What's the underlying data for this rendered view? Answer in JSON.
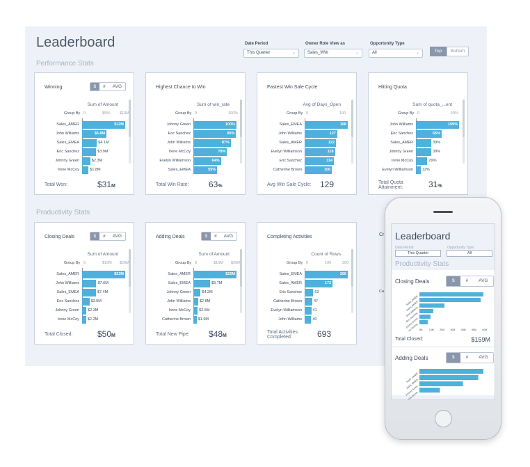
{
  "dashboard": {
    "title": "Leaderboard",
    "sections": [
      "Performance Stats",
      "Productivity Stats"
    ],
    "filters": [
      {
        "label": "Date Period",
        "value": "This Quarter"
      },
      {
        "label": "Owner Role View as",
        "value": "Sales_WW"
      },
      {
        "label": "Opportunity Type",
        "value": "All"
      }
    ],
    "top_bottom": [
      "Top",
      "Bottom"
    ],
    "toggle": [
      "$",
      "#",
      "AVG"
    ]
  },
  "cards": [
    {
      "title": "Winning",
      "toggle": true,
      "measure": "Sum of Amount",
      "ticks": [
        "0",
        "$5M",
        "$10M"
      ],
      "rows": [
        [
          "Sales_AMER",
          12,
          "$12M"
        ],
        [
          "John Williams",
          6.8,
          "$6.8M"
        ],
        [
          "Sales_EMEA",
          4.1,
          "$4.1M"
        ],
        [
          "Eric Sanchez",
          3.9,
          "$3.9M"
        ],
        [
          "Johnny Green",
          2.3,
          "$2.3M"
        ],
        [
          "Irene McCoy",
          1.8,
          "$1.8M"
        ]
      ],
      "max": 12,
      "total_label": "Total Won:",
      "total_value": "$31",
      "total_unit": "M"
    },
    {
      "title": "Highest Chance to Win",
      "toggle": false,
      "measure": "Sum of win_rate",
      "ticks": [
        "0",
        "100%"
      ],
      "rows": [
        [
          "Johnny Green",
          100,
          "100%"
        ],
        [
          "Eric Sanchez",
          99,
          "99%"
        ],
        [
          "John Williams",
          87,
          "87%"
        ],
        [
          "Irene McCoy",
          78,
          "78%"
        ],
        [
          "Evelyn Williamson",
          64,
          "64%"
        ],
        [
          "Sales_EMEA",
          55,
          "55%"
        ]
      ],
      "max": 100,
      "total_label": "Total Win Rate:",
      "total_value": "63",
      "total_unit": "%"
    },
    {
      "title": "Fastest Win Sale Cycle",
      "toggle": false,
      "measure": "Avg of Days_Open",
      "ticks": [
        "0",
        "100"
      ],
      "rows": [
        [
          "Sales_EMEA",
          168,
          "168"
        ],
        [
          "John Williams",
          127,
          "127"
        ],
        [
          "Sales_AMER",
          122,
          "122"
        ],
        [
          "Evelyn Williamson",
          118,
          "118"
        ],
        [
          "Eric Sanchez",
          114,
          "114"
        ],
        [
          "Catherine Brown",
          106,
          "106"
        ]
      ],
      "max": 168,
      "total_label": "Avg Win Sale Cycle:",
      "total_value": "129",
      "total_unit": ""
    },
    {
      "title": "Hitting Quota",
      "toggle": false,
      "measure": "Sum of quota_...ent",
      "ticks": [
        "0",
        "50%"
      ],
      "rows": [
        [
          "John Williams",
          109,
          "109%"
        ],
        [
          "Eric Sanchez",
          65,
          "65%"
        ],
        [
          "Sales_AMER",
          39,
          "39%"
        ],
        [
          "Johnny Green",
          39,
          "39%"
        ],
        [
          "Irene McCoy",
          29,
          "29%"
        ],
        [
          "Evelyn Williamson",
          12,
          "12%"
        ]
      ],
      "max": 109,
      "total_label": "Total Quota Attainment:",
      "total_value": "31",
      "total_unit": "%"
    },
    {
      "title": "Closing Deals",
      "toggle": true,
      "measure": "Sum of Amount",
      "ticks": [
        "0",
        "$10M",
        "$20M"
      ],
      "rows": [
        [
          "Sales_AMER",
          23,
          "$23M"
        ],
        [
          "John Williams",
          7.6,
          "$7.6M"
        ],
        [
          "Sales_EMEA",
          7.4,
          "$7.4M"
        ],
        [
          "Eric Sanchez",
          3.9,
          "$3.9M"
        ],
        [
          "Johnny Green",
          2.3,
          "$2.3M"
        ],
        [
          "Irene McCoy",
          2.2,
          "$2.2M"
        ]
      ],
      "max": 23,
      "total_label": "Total Closed:",
      "total_value": "$50",
      "total_unit": "M"
    },
    {
      "title": "Adding Deals",
      "toggle": true,
      "measure": "Sum of Amount",
      "ticks": [
        "0",
        "$10M",
        "$20M"
      ],
      "rows": [
        [
          "Sales_AMER",
          25,
          "$25M"
        ],
        [
          "Sales_EMEA",
          9.7,
          "$9.7M"
        ],
        [
          "Johnny Green",
          4.2,
          "$4.2M"
        ],
        [
          "John Williams",
          2.8,
          "$2.8M"
        ],
        [
          "Irene McCoy",
          2.5,
          "$2.5M"
        ],
        [
          "Catherine Brown",
          1.9,
          "$1.9M"
        ]
      ],
      "max": 25,
      "total_label": "Total New Pipe:",
      "total_value": "$48",
      "total_unit": "M"
    },
    {
      "title": "Completing Activities",
      "toggle": false,
      "measure": "Count of Rows",
      "ticks": [
        "0",
        "100",
        "200"
      ],
      "rows": [
        [
          "Sales_EMEA",
          266,
          "266"
        ],
        [
          "Sales_AMER",
          172,
          "172"
        ],
        [
          "Eric Sanchez",
          53,
          "53"
        ],
        [
          "Catherine Brown",
          47,
          "47"
        ],
        [
          "Evelyn Williamson",
          41,
          "41"
        ],
        [
          "John Williams",
          40,
          "40"
        ]
      ],
      "max": 266,
      "total_label": "Total Activities Completed:",
      "total_value": "693",
      "total_unit": ""
    }
  ],
  "phone": {
    "title": "Leaderboard",
    "filter_labels": [
      "Date Period",
      "Opportunity Type"
    ],
    "filter_values": [
      "This Quarter",
      "All"
    ],
    "section": "Productivity Stats",
    "closing_title": "Closing Deals",
    "closing_values": [
      23,
      22,
      9,
      5,
      4,
      3
    ],
    "closing_cats": [
      "Sales_AMER",
      "Sales_EMEA",
      "John Williams",
      "Eric Sanchez",
      "Johnny Green",
      "Irene McCoy"
    ],
    "closing_ticks": [
      "0M",
      "10M",
      "20M",
      "30M",
      "40M",
      "50M",
      "60M"
    ],
    "total_label": "Total Closed:",
    "total_value": "$159M",
    "adding_title": "Adding Deals",
    "adding_values": [
      25,
      23,
      17,
      8
    ],
    "adding_cats": [
      "Sales_AMER",
      "Sales_EMEA",
      "Johnny Green",
      "Catherine Brown"
    ],
    "peek_labels": [
      "Cr",
      "Ca"
    ]
  }
}
